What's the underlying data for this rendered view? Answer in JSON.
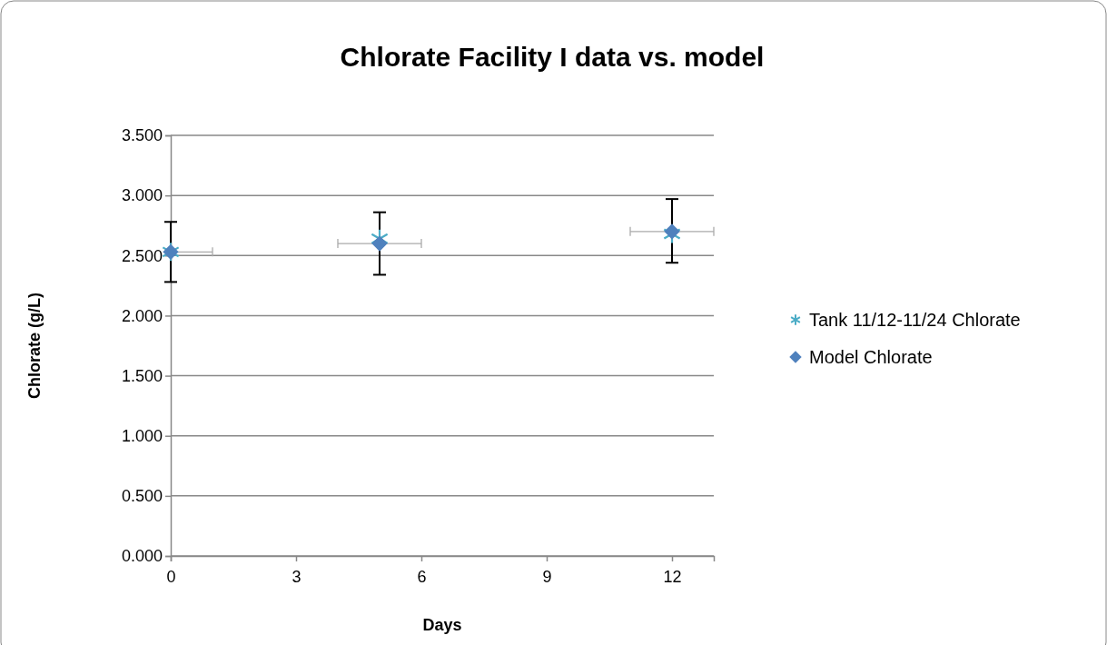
{
  "chart_data": {
    "type": "scatter",
    "title": "Chlorate Facility I data vs. model",
    "xlabel": "Days",
    "ylabel": "Chlorate (g/L)",
    "xlim": [
      0,
      13
    ],
    "xticks": [
      0,
      3,
      6,
      9,
      12
    ],
    "ylim": [
      0,
      3.5
    ],
    "yticks": [
      {
        "value": 0,
        "label": "0.000"
      },
      {
        "value": 0.5,
        "label": "0.500"
      },
      {
        "value": 1,
        "label": "1.000"
      },
      {
        "value": 1.5,
        "label": "1.500"
      },
      {
        "value": 2,
        "label": "2.000"
      },
      {
        "value": 2.5,
        "label": "2.500"
      },
      {
        "value": 3,
        "label": "3.000"
      },
      {
        "value": 3.5,
        "label": "3.500"
      }
    ],
    "grid": "y",
    "legend": "right",
    "series": [
      {
        "name": "Tank 11/12-11/24 Chlorate",
        "color": "#4bacc6",
        "marker": "cross",
        "x": [
          0,
          5,
          12
        ],
        "values": [
          2.53,
          2.64,
          2.68
        ]
      },
      {
        "name": "Model Chlorate",
        "color": "#4f81bd",
        "marker": "diamond",
        "x": [
          0,
          5,
          12
        ],
        "values": [
          2.53,
          2.6,
          2.7
        ],
        "errors": [
          [
            2.28,
            2.78
          ],
          [
            2.34,
            2.86
          ],
          [
            2.44,
            2.97
          ]
        ],
        "xerrors": [
          [
            0,
            1
          ],
          [
            4,
            6
          ],
          [
            11,
            13
          ]
        ]
      }
    ]
  }
}
